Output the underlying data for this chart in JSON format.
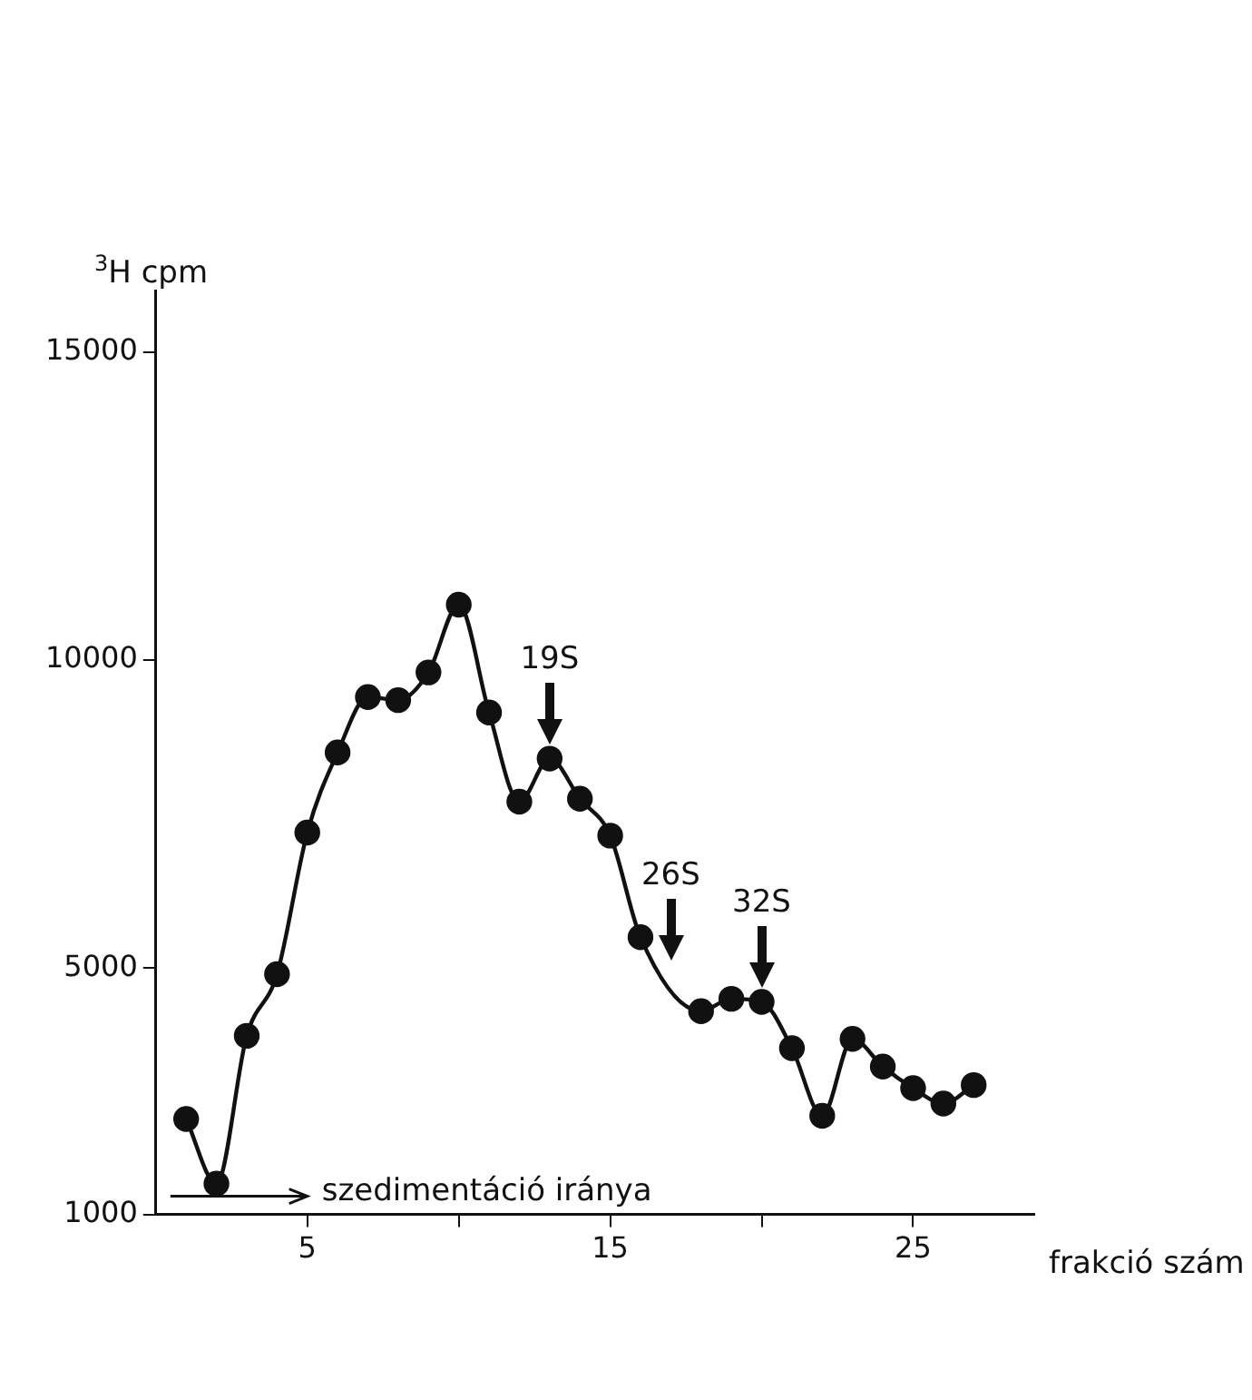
{
  "chart_data": {
    "type": "line",
    "xlabel": "frakció szám",
    "ylabel": "$^{3}$H cpm",
    "marker": "circle",
    "grid": false,
    "x": [
      1,
      2,
      3,
      4,
      5,
      6,
      7,
      8,
      9,
      10,
      11,
      12,
      13,
      14,
      15,
      16,
      18,
      19,
      20,
      21,
      22,
      23,
      24,
      25,
      26,
      27
    ],
    "series": [
      {
        "color": "#111111",
        "values": [
          2550,
          1500,
          3900,
          4900,
          7200,
          8500,
          9400,
          9350,
          9800,
          10900,
          9150,
          7700,
          8400,
          7750,
          7150,
          5500,
          4300,
          4500,
          4450,
          3700,
          2600,
          3850,
          3400,
          3050,
          2800,
          3100
        ]
      }
    ],
    "xlim": [
      0,
      29
    ],
    "xticks": [
      5,
      {
        "value": 10,
        "label": null
      },
      15,
      {
        "value": 20,
        "label": null
      },
      25
    ],
    "ylim": [
      1000,
      16000
    ],
    "yticks": [
      1000,
      5000,
      10000,
      15000
    ],
    "annotations": [
      {
        "text": "19S",
        "x": 13,
        "y": 8400
      },
      {
        "text": "26S",
        "x": 17,
        "y": 4900
      },
      {
        "text": "32S",
        "x": 20,
        "y": 4450
      },
      "szedimentáció iránya"
    ]
  }
}
